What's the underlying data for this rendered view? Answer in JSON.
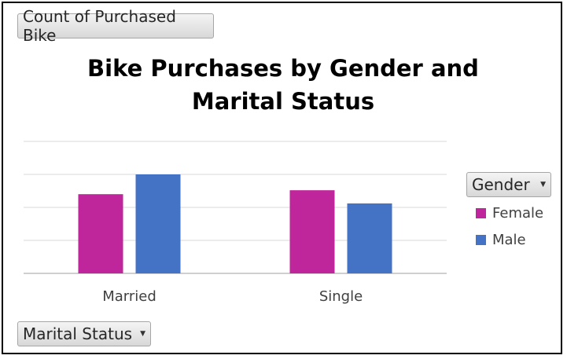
{
  "field_buttons": {
    "value": "Count of Purchased Bike",
    "legend_field": "Gender",
    "axis_field": "Marital Status"
  },
  "colors": {
    "female": "#c0269b",
    "male": "#4472c4",
    "gridline": "#d9d9d9",
    "axis": "#bfbfbf"
  },
  "chart_data": {
    "type": "bar",
    "title": "Bike Purchases by Gender and Marital Status",
    "xlabel": "",
    "ylabel": "",
    "categories": [
      "Married",
      "Single"
    ],
    "series": [
      {
        "name": "Female",
        "values": [
          60,
          63
        ]
      },
      {
        "name": "Male",
        "values": [
          75,
          53
        ]
      }
    ],
    "ylim": [
      0,
      100
    ],
    "grid": true,
    "legend": "right"
  }
}
